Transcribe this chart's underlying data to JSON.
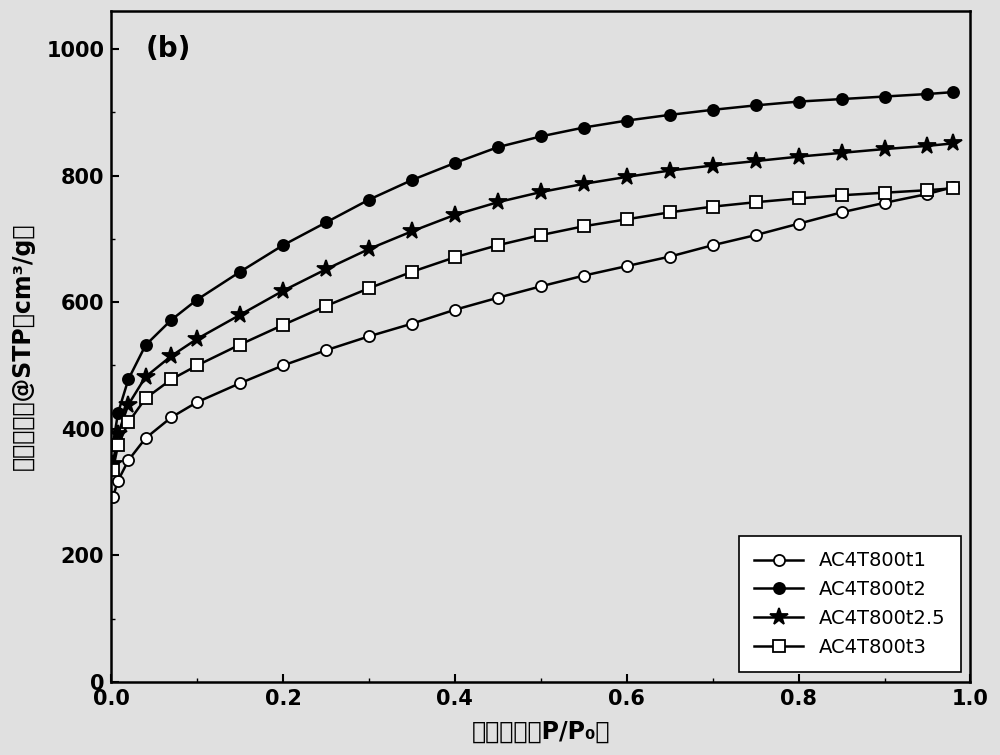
{
  "title_label": "(b)",
  "xlabel": "相對壓力（P/P₀）",
  "ylabel": "氮氣吸附量@STP（cm³/g）",
  "xlim": [
    0.0,
    1.0
  ],
  "ylim": [
    0,
    1060
  ],
  "yticks": [
    0,
    200,
    400,
    600,
    800,
    1000
  ],
  "xticks": [
    0.0,
    0.2,
    0.4,
    0.6,
    0.8,
    1.0
  ],
  "bg_color": "#e0e0e0",
  "series": [
    {
      "label": "AC4T800t1",
      "marker": "o",
      "markerfacecolor": "white",
      "markeredgecolor": "black",
      "color": "black",
      "x": [
        0.002,
        0.008,
        0.02,
        0.04,
        0.07,
        0.1,
        0.15,
        0.2,
        0.25,
        0.3,
        0.35,
        0.4,
        0.45,
        0.5,
        0.55,
        0.6,
        0.65,
        0.7,
        0.75,
        0.8,
        0.85,
        0.9,
        0.95,
        0.98
      ],
      "y": [
        292,
        318,
        350,
        385,
        418,
        442,
        472,
        500,
        524,
        546,
        566,
        588,
        607,
        625,
        642,
        657,
        672,
        690,
        706,
        724,
        742,
        757,
        771,
        782
      ]
    },
    {
      "label": "AC4T800t2",
      "marker": "o",
      "markerfacecolor": "black",
      "markeredgecolor": "black",
      "color": "black",
      "x": [
        0.002,
        0.008,
        0.02,
        0.04,
        0.07,
        0.1,
        0.15,
        0.2,
        0.25,
        0.3,
        0.35,
        0.4,
        0.45,
        0.5,
        0.55,
        0.6,
        0.65,
        0.7,
        0.75,
        0.8,
        0.85,
        0.9,
        0.95,
        0.98
      ],
      "y": [
        375,
        425,
        478,
        532,
        572,
        604,
        648,
        690,
        726,
        762,
        793,
        820,
        845,
        862,
        876,
        887,
        896,
        904,
        911,
        917,
        921,
        925,
        929,
        932
      ]
    },
    {
      "label": "AC4T800t2.5",
      "marker": "*",
      "markerfacecolor": "black",
      "markeredgecolor": "black",
      "color": "black",
      "x": [
        0.002,
        0.008,
        0.02,
        0.04,
        0.07,
        0.1,
        0.15,
        0.2,
        0.25,
        0.3,
        0.35,
        0.4,
        0.45,
        0.5,
        0.55,
        0.6,
        0.65,
        0.7,
        0.75,
        0.8,
        0.85,
        0.9,
        0.95,
        0.98
      ],
      "y": [
        345,
        392,
        438,
        482,
        515,
        542,
        580,
        618,
        652,
        684,
        712,
        738,
        758,
        774,
        787,
        798,
        808,
        816,
        823,
        830,
        836,
        842,
        847,
        851
      ]
    },
    {
      "label": "AC4T800t3",
      "marker": "s",
      "markerfacecolor": "white",
      "markeredgecolor": "black",
      "color": "black",
      "x": [
        0.002,
        0.008,
        0.02,
        0.04,
        0.07,
        0.1,
        0.15,
        0.2,
        0.25,
        0.3,
        0.35,
        0.4,
        0.45,
        0.5,
        0.55,
        0.6,
        0.65,
        0.7,
        0.75,
        0.8,
        0.85,
        0.9,
        0.95,
        0.98
      ],
      "y": [
        335,
        374,
        410,
        448,
        478,
        500,
        533,
        564,
        594,
        622,
        648,
        671,
        690,
        706,
        720,
        731,
        742,
        751,
        758,
        764,
        769,
        773,
        777,
        780
      ]
    }
  ],
  "markersize_circle": 8,
  "markersize_star": 13,
  "markersize_square": 8,
  "linewidth": 1.8,
  "fontsize_tick": 15,
  "fontsize_label": 17,
  "fontsize_legend": 14,
  "fontsize_annot": 20
}
